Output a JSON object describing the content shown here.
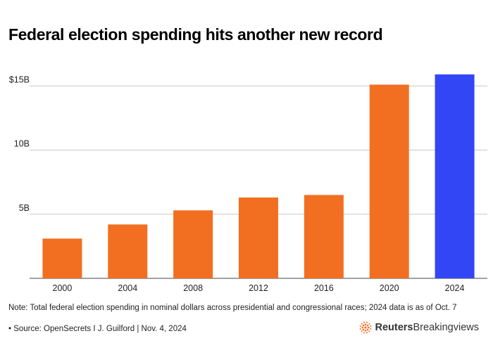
{
  "title": "Federal election spending hits another new record",
  "note": "Note: Total federal election spending in nominal dollars across presidential and congressional races; 2024 data is as of Oct. 7",
  "source": "• Source: OpenSecrets I J. Guilford | Nov. 4, 2024",
  "brand": {
    "name_bold": "Reuters",
    "name_regular": "Breakingviews",
    "logo_icon": "reuters-dots-logo-icon",
    "logo_color": "#f26f21"
  },
  "colors": {
    "bar_default": "#f26f21",
    "bar_highlight": "#3346f5",
    "grid": "#c8c8c8",
    "axis_text": "#222222"
  },
  "chart_data": {
    "type": "bar",
    "title": "Federal election spending hits another new record",
    "xlabel": "",
    "ylabel": "",
    "categories": [
      "2000",
      "2004",
      "2008",
      "2012",
      "2016",
      "2020",
      "2024"
    ],
    "values": [
      3.1,
      4.2,
      5.3,
      6.3,
      6.5,
      15.1,
      15.9
    ],
    "highlight_index": 6,
    "ylim": [
      0,
      16
    ],
    "yticks": [
      5,
      10,
      15
    ],
    "ytick_labels": [
      "5B",
      "10B",
      "$15B"
    ],
    "grid": true,
    "legend": "none"
  }
}
